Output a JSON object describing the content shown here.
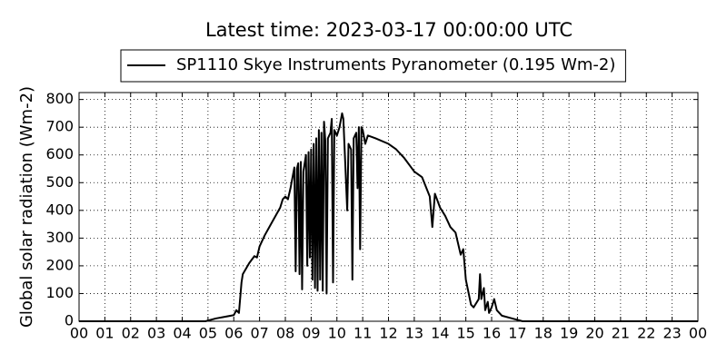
{
  "chart_data": {
    "type": "line",
    "title": "Latest time: 2023-03-17 00:00:00 UTC",
    "y_label": "Global solar radiation (Wm-2)",
    "x": [
      0,
      4.9,
      5.3,
      5.6,
      6.0,
      6.1,
      6.2,
      6.3,
      6.35,
      6.6,
      6.8,
      6.9,
      7.0,
      7.2,
      7.5,
      7.8,
      7.9,
      8.0,
      8.1,
      8.2,
      8.3,
      8.35,
      8.4,
      8.45,
      8.5,
      8.55,
      8.6,
      8.65,
      8.7,
      8.8,
      8.85,
      8.9,
      8.95,
      9.0,
      9.05,
      9.1,
      9.15,
      9.2,
      9.25,
      9.3,
      9.35,
      9.4,
      9.45,
      9.5,
      9.55,
      9.6,
      9.65,
      9.75,
      9.8,
      9.85,
      9.9,
      10.0,
      10.1,
      10.2,
      10.25,
      10.3,
      10.4,
      10.45,
      10.55,
      10.6,
      10.65,
      10.75,
      10.8,
      10.85,
      10.9,
      10.95,
      11.0,
      11.1,
      11.2,
      11.5,
      12.0,
      12.3,
      12.6,
      13.0,
      13.3,
      13.6,
      13.7,
      13.8,
      14.0,
      14.2,
      14.4,
      14.6,
      14.8,
      14.9,
      15.0,
      15.2,
      15.3,
      15.5,
      15.55,
      15.6,
      15.7,
      15.75,
      15.85,
      15.9,
      16.0,
      16.1,
      16.2,
      16.4,
      16.8,
      17.2,
      24
    ],
    "series": [
      {
        "name": "SP1110 Skye Instruments Pyranometer (0.195 Wm-2)",
        "color": "#000000",
        "values": [
          0,
          0,
          10,
          15,
          22,
          40,
          30,
          140,
          170,
          210,
          235,
          230,
          270,
          310,
          360,
          410,
          440,
          450,
          440,
          480,
          530,
          555,
          180,
          550,
          570,
          170,
          575,
          115,
          540,
          600,
          200,
          610,
          230,
          620,
          150,
          640,
          120,
          660,
          110,
          690,
          150,
          680,
          110,
          720,
          650,
          100,
          660,
          680,
          730,
          140,
          690,
          670,
          700,
          750,
          730,
          620,
          400,
          640,
          620,
          150,
          660,
          680,
          480,
          700,
          260,
          700,
          690,
          640,
          670,
          660,
          640,
          620,
          590,
          540,
          520,
          450,
          340,
          460,
          410,
          380,
          340,
          320,
          240,
          260,
          150,
          60,
          50,
          80,
          170,
          80,
          120,
          40,
          70,
          30,
          50,
          80,
          40,
          20,
          10,
          0,
          0
        ]
      }
    ],
    "xlim": [
      0,
      24
    ],
    "xticks": [
      {
        "value": 0,
        "label": "00"
      },
      {
        "value": 1,
        "label": "01"
      },
      {
        "value": 2,
        "label": "02"
      },
      {
        "value": 3,
        "label": "03"
      },
      {
        "value": 4,
        "label": "04"
      },
      {
        "value": 5,
        "label": "05"
      },
      {
        "value": 6,
        "label": "06"
      },
      {
        "value": 7,
        "label": "07"
      },
      {
        "value": 8,
        "label": "08"
      },
      {
        "value": 9,
        "label": "09"
      },
      {
        "value": 10,
        "label": "10"
      },
      {
        "value": 11,
        "label": "11"
      },
      {
        "value": 12,
        "label": "12"
      },
      {
        "value": 13,
        "label": "13"
      },
      {
        "value": 14,
        "label": "14"
      },
      {
        "value": 15,
        "label": "15"
      },
      {
        "value": 16,
        "label": "16"
      },
      {
        "value": 17,
        "label": "17"
      },
      {
        "value": 18,
        "label": "18"
      },
      {
        "value": 19,
        "label": "19"
      },
      {
        "value": 20,
        "label": "20"
      },
      {
        "value": 21,
        "label": "21"
      },
      {
        "value": 22,
        "label": "22"
      },
      {
        "value": 23,
        "label": "23"
      },
      {
        "value": 24,
        "label": "00"
      }
    ],
    "ylim": [
      0,
      825
    ],
    "yticks": [
      0,
      100,
      200,
      300,
      400,
      500,
      600,
      700,
      800
    ],
    "grid": true
  }
}
